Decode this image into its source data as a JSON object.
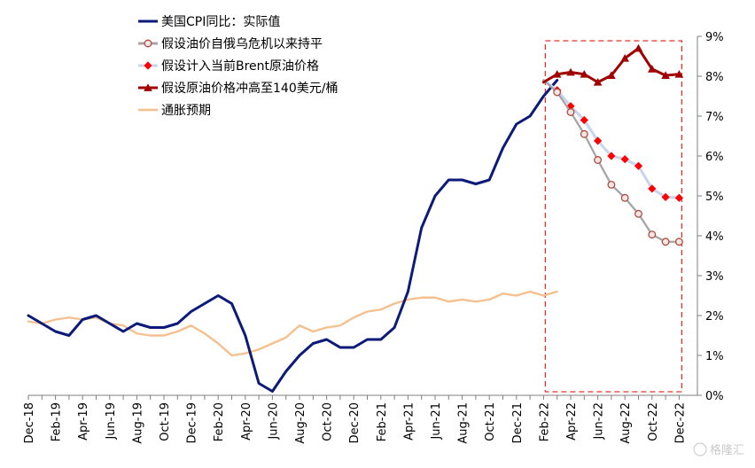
{
  "chart_data": {
    "type": "line",
    "title": "",
    "xlabel": "",
    "ylabel": "",
    "ylim": [
      0,
      9
    ],
    "y_axis_position": "right",
    "y_ticks": [
      "0%",
      "1%",
      "2%",
      "3%",
      "4%",
      "5%",
      "6%",
      "7%",
      "8%",
      "9%"
    ],
    "x_tick_labels": [
      "Dec-18",
      "Feb-19",
      "Apr-19",
      "Jun-19",
      "Aug-19",
      "Oct-19",
      "Dec-19",
      "Feb-20",
      "Apr-20",
      "Jun-20",
      "Aug-20",
      "Oct-20",
      "Dec-20",
      "Feb-21",
      "Apr-21",
      "Jun-21",
      "Aug-21",
      "Oct-21",
      "Dec-21",
      "Feb-22",
      "Apr-22",
      "Jun-22",
      "Aug-22",
      "Oct-22",
      "Dec-22"
    ],
    "x_categories": [
      "Dec-18",
      "Jan-19",
      "Feb-19",
      "Mar-19",
      "Apr-19",
      "May-19",
      "Jun-19",
      "Jul-19",
      "Aug-19",
      "Sep-19",
      "Oct-19",
      "Nov-19",
      "Dec-19",
      "Jan-20",
      "Feb-20",
      "Mar-20",
      "Apr-20",
      "May-20",
      "Jun-20",
      "Jul-20",
      "Aug-20",
      "Sep-20",
      "Oct-20",
      "Nov-20",
      "Dec-20",
      "Jan-21",
      "Feb-21",
      "Mar-21",
      "Apr-21",
      "May-21",
      "Jun-21",
      "Jul-21",
      "Aug-21",
      "Sep-21",
      "Oct-21",
      "Nov-21",
      "Dec-21",
      "Jan-22",
      "Feb-22",
      "Mar-22",
      "Apr-22",
      "May-22",
      "Jun-22",
      "Jul-22",
      "Aug-22",
      "Sep-22",
      "Oct-22",
      "Nov-22",
      "Dec-22"
    ],
    "legend_position": "top-left",
    "grid": false,
    "highlight_box": {
      "from": "Feb-22",
      "to": "Dec-22",
      "color": "#e8302a",
      "style": "dashed"
    },
    "watermark": "格隆汇",
    "series": [
      {
        "name": "美国CPI同比：实际值",
        "color": "#0c1a7a",
        "marker": "none",
        "start": "Dec-18",
        "values": [
          2.0,
          1.8,
          1.6,
          1.5,
          1.9,
          2.0,
          1.8,
          1.6,
          1.8,
          1.7,
          1.7,
          1.8,
          2.1,
          2.3,
          2.5,
          2.3,
          1.5,
          0.3,
          0.1,
          0.6,
          1.0,
          1.3,
          1.4,
          1.2,
          1.2,
          1.4,
          1.4,
          1.7,
          2.6,
          4.2,
          5.0,
          5.4,
          5.4,
          5.3,
          5.4,
          6.2,
          6.8,
          7.0,
          7.5,
          7.9
        ]
      },
      {
        "name": "假设油价自俄乌危机以来持平",
        "color": "#a5a5a5",
        "marker": "circle",
        "marker_color": "#b04a3c",
        "start": "Feb-22",
        "values": [
          7.9,
          7.6,
          7.1,
          6.55,
          5.9,
          5.28,
          4.95,
          4.55,
          4.03,
          3.85,
          3.85
        ]
      },
      {
        "name": "假设计入当前Brent原油价格",
        "color": "#c6d4ec",
        "marker": "diamond",
        "marker_color": "#ff0000",
        "start": "Feb-22",
        "values": [
          7.9,
          7.65,
          7.25,
          6.9,
          6.38,
          6.0,
          5.92,
          5.75,
          5.18,
          4.97,
          4.95
        ]
      },
      {
        "name": "假设原油价格冲高至140美元/桶",
        "color": "#a00000",
        "marker": "triangle",
        "marker_color": "#a00000",
        "start": "Feb-22",
        "values": [
          7.85,
          8.05,
          8.1,
          8.05,
          7.85,
          8.02,
          8.45,
          8.7,
          8.18,
          8.02,
          8.05
        ]
      },
      {
        "name": "通胀预期",
        "color": "#f5bf8e",
        "marker": "none",
        "start": "Dec-18",
        "values": [
          1.85,
          1.8,
          1.9,
          1.95,
          1.9,
          1.95,
          1.8,
          1.75,
          1.55,
          1.5,
          1.5,
          1.6,
          1.75,
          1.55,
          1.3,
          1.0,
          1.05,
          1.15,
          1.3,
          1.45,
          1.75,
          1.6,
          1.7,
          1.75,
          1.95,
          2.1,
          2.15,
          2.3,
          2.4,
          2.45,
          2.45,
          2.35,
          2.4,
          2.35,
          2.4,
          2.55,
          2.5,
          2.6,
          2.5,
          2.6
        ]
      }
    ]
  }
}
